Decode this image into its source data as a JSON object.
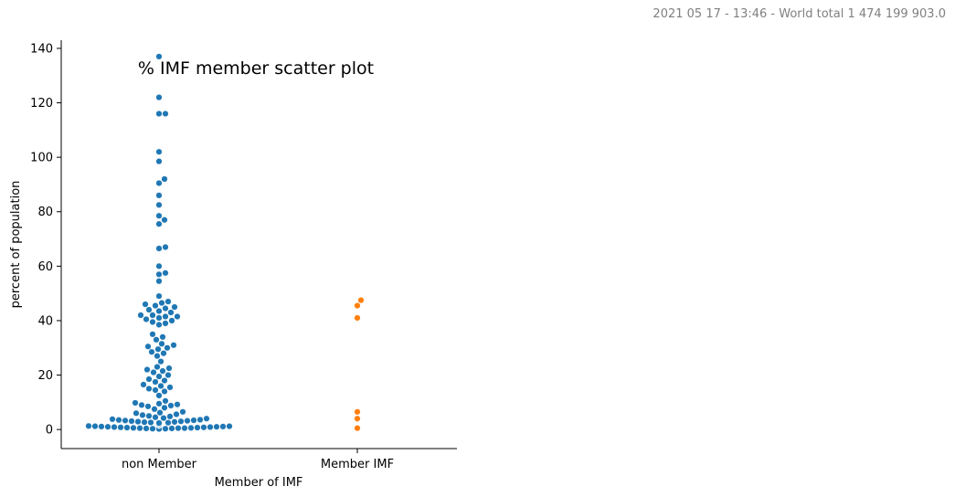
{
  "timestamp_text": "2021 05 17 - 13:46 - World total 1 474 199 903.0",
  "chart_data": {
    "type": "scatter",
    "subtype": "swarm",
    "title": "% IMF member scatter plot",
    "xlabel": "Member of IMF",
    "ylabel": "percent of population",
    "categories": [
      "non Member",
      "Member IMF"
    ],
    "ylim": [
      -7,
      143
    ],
    "yticks": [
      0,
      20,
      40,
      60,
      80,
      100,
      120,
      140
    ],
    "grid": false,
    "legend": "none",
    "series": [
      {
        "category": "non Member",
        "color": "#1f77b4",
        "values": [
          0.2,
          0.3,
          0.3,
          0.4,
          0.4,
          0.5,
          0.5,
          0.5,
          0.6,
          0.6,
          0.7,
          0.7,
          0.8,
          0.8,
          0.9,
          0.9,
          1.0,
          1.0,
          1.1,
          1.1,
          1.2,
          1.2,
          1.3,
          1.4,
          1.5,
          1.5,
          1.6,
          1.7,
          1.8,
          1.9,
          2.0,
          2.1,
          2.2,
          2.3,
          2.4,
          2.5,
          2.6,
          2.7,
          2.8,
          2.9,
          3.0,
          3.1,
          3.2,
          3.3,
          3.4,
          3.5,
          3.6,
          3.8,
          4.0,
          4.2,
          4.5,
          4.8,
          5.0,
          5.3,
          5.6,
          6.0,
          6.2,
          6.5,
          7.5,
          8.0,
          8.5,
          8.8,
          9.0,
          9.2,
          9.5,
          9.8,
          10.5,
          12.5,
          14.0,
          14.5,
          15.0,
          15.5,
          16.0,
          16.5,
          17.5,
          18.0,
          18.5,
          19.5,
          20.0,
          21.0,
          21.5,
          22.0,
          22.5,
          23.0,
          25.0,
          27.0,
          28.0,
          28.5,
          29.5,
          30.0,
          30.5,
          31.0,
          31.5,
          33.0,
          34.0,
          35.0,
          38.5,
          39.0,
          39.5,
          40.0,
          40.5,
          41.0,
          41.5,
          41.5,
          42.0,
          42.0,
          43.0,
          43.5,
          44.0,
          44.5,
          45.0,
          45.5,
          46.0,
          46.5,
          47.0,
          49.0,
          54.5,
          57.0,
          57.5,
          60.0,
          66.5,
          67.0,
          75.5,
          77.0,
          78.5,
          82.5,
          86.0,
          90.5,
          92.0,
          98.5,
          102.0,
          116.0,
          116.0,
          122.0,
          137.0
        ]
      },
      {
        "category": "Member IMF",
        "color": "#ff7f0e",
        "values": [
          0.5,
          4.0,
          6.5,
          41.0,
          45.5,
          47.5
        ]
      }
    ]
  }
}
